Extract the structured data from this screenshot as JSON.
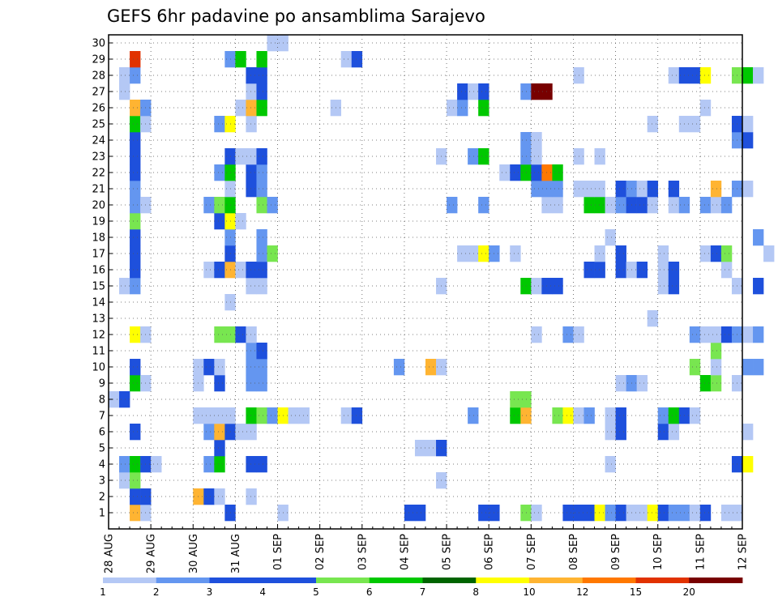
{
  "chart_data": {
    "type": "heatmap",
    "title": "GEFS 6hr padavine po ansamblima Sarajevo",
    "xlabel": "",
    "ylabel": "",
    "x_tick_labels": [
      "28 AUG",
      "29 AUG",
      "30 AUG",
      "31 AUG",
      "01 SEP",
      "02 SEP",
      "03 SEP",
      "04 SEP",
      "05 SEP",
      "06 SEP",
      "07 SEP",
      "08 SEP",
      "09 SEP",
      "10 SEP",
      "11 SEP",
      "12 SEP"
    ],
    "y_tick_labels": [
      "1",
      "2",
      "3",
      "4",
      "5",
      "6",
      "7",
      "8",
      "9",
      "10",
      "11",
      "12",
      "13",
      "14",
      "15",
      "16",
      "17",
      "18",
      "19",
      "20",
      "21",
      "22",
      "23",
      "24",
      "25",
      "26",
      "27",
      "28",
      "29",
      "30"
    ],
    "time_step_hours": 6,
    "members": 30,
    "grid": true,
    "colorbar": {
      "position": "bottom",
      "levels": [
        "1",
        "2",
        "3",
        "4",
        "5",
        "6",
        "7",
        "8",
        "10",
        "12",
        "15",
        "20"
      ],
      "colors": [
        "#b4c8f5",
        "#6496f0",
        "#1e50dc",
        "#1e50dc",
        "#78e650",
        "#00c800",
        "#006400",
        "#ffff00",
        "#ffb432",
        "#ff7800",
        "#e13200",
        "#780000"
      ]
    },
    "cells": [
      {
        "m": 1,
        "t": [
          "28 AUG 12",
          "28 AUG 18",
          "30 AUG 18",
          "01 SEP 00",
          "04 SEP 00",
          "04 SEP 06",
          "05 SEP 18",
          "06 SEP 00",
          "06 SEP 18",
          "07 SEP 00",
          "07 SEP 18",
          "08 SEP 00",
          "08 SEP 06",
          "08 SEP 12",
          "08 SEP 18",
          "09 SEP 00",
          "09 SEP 06",
          "09 SEP 12",
          "09 SEP 18",
          "10 SEP 00",
          "10 SEP 06",
          "10 SEP 12",
          "10 SEP 18",
          "11 SEP 00",
          "11 SEP 12",
          "11 SEP 18"
        ],
        "v": [
          10,
          1,
          4,
          1,
          3,
          3,
          3,
          3,
          5,
          1,
          3,
          3,
          3,
          8,
          2,
          4,
          1,
          1,
          8,
          3,
          2,
          2,
          1,
          3,
          1,
          1
        ]
      },
      {
        "m": 2,
        "t": [
          "28 AUG 12",
          "28 AUG 18",
          "30 AUG 00",
          "30 AUG 06",
          "30 AUG 12",
          "31 AUG 06"
        ],
        "v": [
          4,
          3,
          10,
          3,
          1,
          1
        ]
      },
      {
        "m": 3,
        "t": [
          "28 AUG 06",
          "28 AUG 12",
          "04 SEP 18"
        ],
        "v": [
          1,
          5,
          1
        ]
      },
      {
        "m": 4,
        "t": [
          "28 AUG 06",
          "28 AUG 12",
          "28 AUG 18",
          "29 AUG 00",
          "30 AUG 06",
          "30 AUG 12",
          "31 AUG 06",
          "31 AUG 12",
          "08 SEP 18",
          "11 SEP 18",
          "12 SEP 00"
        ],
        "v": [
          2,
          6,
          3,
          1,
          2,
          6,
          3,
          4,
          1,
          3,
          8
        ]
      },
      {
        "m": 5,
        "t": [
          "30 AUG 12",
          "04 SEP 06",
          "04 SEP 12",
          "04 SEP 18"
        ],
        "v": [
          3,
          1,
          1,
          3
        ]
      },
      {
        "m": 6,
        "t": [
          "28 AUG 12",
          "30 AUG 06",
          "30 AUG 12",
          "30 AUG 18",
          "31 AUG 00",
          "31 AUG 06",
          "08 SEP 18",
          "09 SEP 00",
          "10 SEP 00",
          "10 SEP 06",
          "12 SEP 00"
        ],
        "v": [
          4,
          2,
          10,
          3,
          1,
          1,
          1,
          3,
          4,
          1,
          1
        ]
      },
      {
        "m": 7,
        "t": [
          "30 AUG 00",
          "30 AUG 06",
          "30 AUG 12",
          "30 AUG 18",
          "31 AUG 06",
          "31 AUG 12",
          "31 AUG 18",
          "01 SEP 00",
          "01 SEP 06",
          "01 SEP 12",
          "02 SEP 12",
          "02 SEP 18",
          "05 SEP 12",
          "06 SEP 12",
          "06 SEP 18",
          "07 SEP 12",
          "07 SEP 18",
          "08 SEP 00",
          "08 SEP 06",
          "08 SEP 18",
          "09 SEP 00",
          "10 SEP 00",
          "10 SEP 06",
          "10 SEP 12",
          "10 SEP 18"
        ],
        "v": [
          1,
          1,
          1,
          1,
          6,
          5,
          2,
          8,
          1,
          1,
          1,
          3,
          2,
          6,
          10,
          5,
          8,
          1,
          2,
          1,
          3,
          2,
          6,
          3,
          1
        ]
      },
      {
        "m": 8,
        "t": [
          "28 AUG 00",
          "28 AUG 06",
          "06 SEP 12",
          "06 SEP 18"
        ],
        "v": [
          1,
          3,
          5,
          5
        ]
      },
      {
        "m": 9,
        "t": [
          "28 AUG 12",
          "28 AUG 18",
          "30 AUG 00",
          "30 AUG 12",
          "31 AUG 06",
          "31 AUG 12",
          "09 SEP 00",
          "09 SEP 06",
          "09 SEP 12",
          "11 SEP 18",
          "11 SEP 00",
          "11 SEP 06"
        ],
        "v": [
          6,
          1,
          1,
          4,
          2,
          2,
          1,
          2,
          1,
          1,
          6,
          5
        ]
      },
      {
        "m": 10,
        "t": [
          "28 AUG 12",
          "30 AUG 00",
          "30 AUG 06",
          "30 AUG 12",
          "31 AUG 06",
          "31 AUG 12",
          "03 SEP 18",
          "04 SEP 12",
          "04 SEP 18",
          "10 SEP 18",
          "11 SEP 06",
          "12 SEP 00",
          "12 SEP 06"
        ],
        "v": [
          4,
          1,
          3,
          1,
          2,
          2,
          2,
          10,
          1,
          5,
          1,
          2,
          2
        ]
      },
      {
        "m": 11,
        "t": [
          "31 AUG 06",
          "31 AUG 12",
          "11 SEP 06"
        ],
        "v": [
          2,
          4,
          5
        ]
      },
      {
        "m": 12,
        "t": [
          "28 AUG 12",
          "28 AUG 18",
          "30 AUG 12",
          "30 AUG 18",
          "31 AUG 00",
          "31 AUG 06",
          "07 SEP 00",
          "07 SEP 18",
          "08 SEP 00",
          "10 SEP 18",
          "11 SEP 00",
          "11 SEP 06",
          "11 SEP 12",
          "11 SEP 18",
          "12 SEP 00",
          "12 SEP 06"
        ],
        "v": [
          8,
          1,
          5,
          5,
          3,
          1,
          1,
          2,
          1,
          2,
          1,
          1,
          4,
          2,
          1,
          2
        ]
      },
      {
        "m": 13,
        "t": [
          "09 SEP 18"
        ],
        "v": [
          1
        ]
      },
      {
        "m": 14,
        "t": [
          "30 AUG 18"
        ],
        "v": [
          1
        ]
      },
      {
        "m": 15,
        "t": [
          "28 AUG 06",
          "28 AUG 12",
          "31 AUG 06",
          "31 AUG 12",
          "04 SEP 18",
          "06 SEP 18",
          "07 SEP 00",
          "07 SEP 06",
          "07 SEP 12",
          "10 SEP 00",
          "10 SEP 06",
          "11 SEP 18",
          "12 SEP 06"
        ],
        "v": [
          1,
          2,
          1,
          1,
          1,
          6,
          1,
          3,
          4,
          1,
          3,
          1,
          3
        ]
      },
      {
        "m": 16,
        "t": [
          "28 AUG 12",
          "30 AUG 06",
          "30 AUG 12",
          "30 AUG 18",
          "31 AUG 00",
          "31 AUG 06",
          "31 AUG 12",
          "08 SEP 06",
          "08 SEP 12",
          "09 SEP 00",
          "09 SEP 06",
          "09 SEP 12",
          "10 SEP 00",
          "10 SEP 06",
          "11 SEP 12"
        ],
        "v": [
          3,
          1,
          4,
          10,
          1,
          3,
          4,
          3,
          3,
          4,
          1,
          4,
          1,
          3,
          1
        ]
      },
      {
        "m": 17,
        "t": [
          "28 AUG 12",
          "30 AUG 18",
          "31 AUG 12",
          "31 AUG 18",
          "05 SEP 06",
          "05 SEP 12",
          "05 SEP 18",
          "06 SEP 00",
          "06 SEP 12",
          "08 SEP 12",
          "09 SEP 00",
          "10 SEP 00",
          "11 SEP 00",
          "11 SEP 06",
          "11 SEP 12",
          "12 SEP 12"
        ],
        "v": [
          3,
          3,
          2,
          5,
          1,
          1,
          8,
          2,
          1,
          1,
          3,
          1,
          1,
          4,
          5,
          1
        ]
      },
      {
        "m": 18,
        "t": [
          "28 AUG 12",
          "30 AUG 18",
          "31 AUG 12",
          "08 SEP 18",
          "12 SEP 06"
        ],
        "v": [
          3,
          2,
          2,
          1,
          2
        ]
      },
      {
        "m": 19,
        "t": [
          "28 AUG 12",
          "30 AUG 12",
          "30 AUG 18",
          "31 AUG 00"
        ],
        "v": [
          5,
          4,
          8,
          1
        ]
      },
      {
        "m": 20,
        "t": [
          "28 AUG 12",
          "28 AUG 18",
          "30 AUG 06",
          "30 AUG 12",
          "30 AUG 18",
          "31 AUG 12",
          "31 AUG 18",
          "05 SEP 00",
          "05 SEP 18",
          "07 SEP 06",
          "07 SEP 12",
          "08 SEP 06",
          "08 SEP 12",
          "08 SEP 18",
          "09 SEP 00",
          "09 SEP 06",
          "09 SEP 12",
          "09 SEP 18",
          "10 SEP 06",
          "10 SEP 12",
          "11 SEP 00",
          "11 SEP 06",
          "11 SEP 12"
        ],
        "v": [
          2,
          1,
          2,
          5,
          6,
          5,
          2,
          2,
          2,
          1,
          1,
          6,
          6,
          1,
          2,
          4,
          4,
          1,
          1,
          2,
          2,
          1,
          2
        ]
      },
      {
        "m": 21,
        "t": [
          "28 AUG 12",
          "30 AUG 18",
          "31 AUG 06",
          "31 AUG 12",
          "07 SEP 00",
          "07 SEP 06",
          "07 SEP 12",
          "08 SEP 00",
          "08 SEP 06",
          "08 SEP 12",
          "09 SEP 00",
          "09 SEP 06",
          "09 SEP 12",
          "09 SEP 18",
          "10 SEP 06",
          "11 SEP 06",
          "11 SEP 18",
          "12 SEP 00"
        ],
        "v": [
          2,
          1,
          3,
          2,
          2,
          2,
          2,
          1,
          1,
          1,
          3,
          2,
          1,
          3,
          4,
          10,
          2,
          1
        ]
      },
      {
        "m": 22,
        "t": [
          "28 AUG 12",
          "30 AUG 12",
          "30 AUG 18",
          "31 AUG 06",
          "31 AUG 12",
          "06 SEP 06",
          "06 SEP 12",
          "06 SEP 18",
          "07 SEP 00",
          "07 SEP 06",
          "07 SEP 12"
        ],
        "v": [
          4,
          2,
          6,
          3,
          2,
          1,
          3,
          6,
          3,
          12,
          6
        ]
      },
      {
        "m": 23,
        "t": [
          "28 AUG 12",
          "30 AUG 18",
          "31 AUG 00",
          "31 AUG 06",
          "31 AUG 12",
          "04 SEP 18",
          "05 SEP 12",
          "05 SEP 18",
          "06 SEP 18",
          "07 SEP 00",
          "08 SEP 00",
          "08 SEP 12"
        ],
        "v": [
          3,
          3,
          1,
          1,
          4,
          1,
          2,
          6,
          2,
          1,
          1,
          1
        ]
      },
      {
        "m": 24,
        "t": [
          "28 AUG 12",
          "06 SEP 18",
          "07 SEP 00",
          "11 SEP 18",
          "12 SEP 00"
        ],
        "v": [
          4,
          2,
          1,
          2,
          3
        ]
      },
      {
        "m": 25,
        "t": [
          "28 AUG 12",
          "28 AUG 18",
          "30 AUG 12",
          "30 AUG 18",
          "31 AUG 06",
          "09 SEP 18",
          "10 SEP 12",
          "10 SEP 18",
          "11 SEP 18",
          "12 SEP 00"
        ],
        "v": [
          6,
          1,
          2,
          8,
          1,
          1,
          1,
          1,
          3,
          1
        ]
      },
      {
        "m": 26,
        "t": [
          "28 AUG 12",
          "28 AUG 18",
          "31 AUG 00",
          "31 AUG 06",
          "31 AUG 12",
          "02 SEP 06",
          "05 SEP 00",
          "05 SEP 06",
          "05 SEP 18",
          "11 SEP 00"
        ],
        "v": [
          10,
          2,
          1,
          10,
          6,
          1,
          1,
          2,
          6,
          1
        ]
      },
      {
        "m": 27,
        "t": [
          "28 AUG 06",
          "31 AUG 06",
          "31 AUG 12",
          "05 SEP 06",
          "05 SEP 12",
          "05 SEP 18",
          "06 SEP 18",
          "07 SEP 00",
          "07 SEP 06"
        ],
        "v": [
          1,
          1,
          4,
          3,
          1,
          3,
          2,
          20,
          20
        ]
      },
      {
        "m": 28,
        "t": [
          "28 AUG 06",
          "28 AUG 12",
          "31 AUG 06",
          "31 AUG 12",
          "08 SEP 00",
          "10 SEP 06",
          "10 SEP 12",
          "10 SEP 18",
          "11 SEP 00",
          "11 SEP 18",
          "12 SEP 00",
          "12 SEP 06"
        ],
        "v": [
          1,
          2,
          4,
          4,
          1,
          1,
          3,
          4,
          8,
          5,
          6,
          1
        ]
      },
      {
        "m": 29,
        "t": [
          "28 AUG 12",
          "30 AUG 18",
          "31 AUG 00",
          "31 AUG 12",
          "02 SEP 12",
          "02 SEP 18"
        ],
        "v": [
          15,
          2,
          6,
          6,
          1,
          3
        ]
      },
      {
        "m": 30,
        "t": [
          "31 AUG 18",
          "01 SEP 00"
        ],
        "v": [
          1,
          1
        ]
      }
    ]
  }
}
